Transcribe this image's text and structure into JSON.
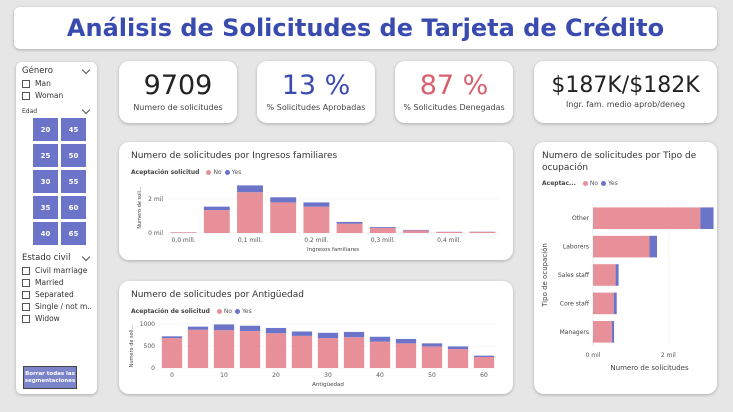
{
  "title": "Análisis de Solicitudes de Tarjeta de Crédito",
  "colors": {
    "no": "#e8909a",
    "yes": "#6b74c8",
    "title": "#3a4bb0"
  },
  "slicers": {
    "genero": {
      "label": "Género",
      "options": [
        "Man",
        "Woman"
      ]
    },
    "edad": {
      "label": "Edad",
      "buttons": [
        "20",
        "45",
        "25",
        "50",
        "30",
        "55",
        "35",
        "60",
        "40",
        "65"
      ]
    },
    "estado_civil": {
      "label": "Estado civil",
      "options": [
        "Civil marriage",
        "Married",
        "Separated",
        "Single / not m...",
        "Widow"
      ]
    },
    "reset_label": "Borrar todas las segmentaciones"
  },
  "kpis": [
    {
      "value": "9709",
      "label": "Numero de solicitudes",
      "color": "#222222"
    },
    {
      "value": "13 %",
      "label": "% Solicitudes Aprobadas",
      "color": "#3a4bb0"
    },
    {
      "value": "87 %",
      "label": "% Solicitudes Denegadas",
      "color": "#d9606f"
    },
    {
      "value": "$187K/$182K",
      "label": "Ingr. fam. medio aprob/deneg",
      "color": "#222222"
    }
  ],
  "charts": {
    "income": {
      "title": "Numero de solicitudes por Ingresos familiares",
      "legend_title": "Aceptación solicitud",
      "legend_no": "No",
      "legend_yes": "Yes"
    },
    "antiguedad": {
      "title": "Numero de solicitudes por Antigüedad",
      "legend_title": "Aceptación de solicitud",
      "legend_no": "No",
      "legend_yes": "Yes"
    },
    "ocupacion": {
      "title": "Numero de solicitudes por Tipo de ocupación",
      "legend_title": "Aceptac...",
      "legend_no": "No",
      "legend_yes": "Yes"
    }
  },
  "chart_data": [
    {
      "type": "bar",
      "title": "Numero de solicitudes por Ingresos familiares",
      "xlabel": "Ingresos familiares",
      "ylabel": "Numero de soli...",
      "x_ticks": [
        "0,0 mill.",
        "0,1 mill.",
        "0,2 mill.",
        "0,3 mill.",
        "0,4 mill."
      ],
      "y_ticks": [
        "0 mil",
        "2 mil"
      ],
      "ylim": [
        0,
        3000
      ],
      "categories": [
        "0.00",
        "0.05",
        "0.10",
        "0.15",
        "0.20",
        "0.25",
        "0.30",
        "0.35",
        "0.40",
        "0.45"
      ],
      "series": [
        {
          "name": "No",
          "values": [
            40,
            1350,
            2400,
            1800,
            1550,
            550,
            300,
            150,
            60,
            70
          ]
        },
        {
          "name": "Yes",
          "values": [
            5,
            200,
            400,
            300,
            250,
            100,
            50,
            30,
            10,
            10
          ]
        }
      ]
    },
    {
      "type": "bar",
      "title": "Numero de solicitudes por Antigüedad",
      "xlabel": "Antigüedad",
      "ylabel": "Numero de soli...",
      "x_ticks": [
        "0",
        "10",
        "20",
        "30",
        "40",
        "50",
        "60"
      ],
      "y_ticks": [
        "0",
        "500",
        "1000"
      ],
      "ylim": [
        0,
        1000
      ],
      "categories": [
        0,
        5,
        10,
        15,
        20,
        25,
        30,
        35,
        40,
        45,
        50,
        55,
        60
      ],
      "series": [
        {
          "name": "No",
          "values": [
            680,
            870,
            860,
            840,
            790,
            730,
            680,
            700,
            600,
            560,
            490,
            430,
            250
          ]
        },
        {
          "name": "Yes",
          "values": [
            40,
            70,
            130,
            120,
            120,
            100,
            120,
            120,
            110,
            100,
            70,
            60,
            30
          ]
        }
      ]
    },
    {
      "type": "bar",
      "title": "Numero de solicitudes por Tipo de ocupación",
      "xlabel": "Numero de solicitudes",
      "ylabel": "Tipo de ocupación",
      "x_ticks": [
        "0 mil",
        "2 mil"
      ],
      "xlim": [
        0,
        3000
      ],
      "orientation": "horizontal",
      "categories": [
        "Other",
        "Laborers",
        "Sales staff",
        "Core staff",
        "Managers"
      ],
      "series": [
        {
          "name": "No",
          "values": [
            2850,
            1500,
            600,
            550,
            500
          ]
        },
        {
          "name": "Yes",
          "values": [
            350,
            200,
            80,
            80,
            60
          ]
        }
      ]
    }
  ]
}
